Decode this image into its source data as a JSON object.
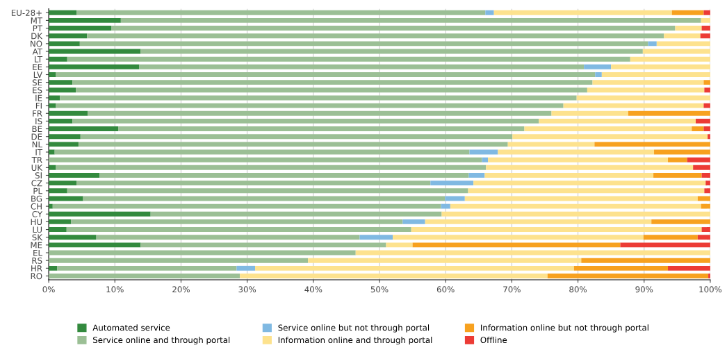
{
  "chart_data": {
    "type": "bar",
    "orientation": "horizontal",
    "stacked": true,
    "categories": [
      "EU-28+",
      "MT",
      "PT",
      "DK",
      "NO",
      "AT",
      "LT",
      "EE",
      "LV",
      "SE",
      "ES",
      "IE",
      "FI",
      "FR",
      "IS",
      "BE",
      "DE",
      "NL",
      "IT",
      "TR",
      "UK",
      "SI",
      "CZ",
      "PL",
      "BG",
      "CH",
      "CY",
      "HU",
      "LU",
      "SK",
      "ME",
      "EL",
      "RS",
      "HR",
      "RO"
    ],
    "series": [
      {
        "name": "Automated service",
        "color": "#338a3e",
        "values": [
          4.2,
          10.9,
          9.5,
          5.8,
          4.7,
          13.9,
          2.8,
          13.7,
          1.1,
          3.6,
          4.1,
          1.7,
          1.1,
          5.9,
          3.6,
          10.5,
          4.8,
          4.5,
          0.9,
          0,
          1.1,
          7.7,
          4.2,
          2.8,
          5.2,
          0.6,
          15.4,
          3.4,
          2.7,
          7.2,
          13.9,
          0,
          0,
          1.3,
          0
        ]
      },
      {
        "name": "Service online and through portal",
        "color": "#9bbf95",
        "values": [
          61.8,
          87.7,
          85.2,
          87.2,
          85.9,
          75.9,
          85.1,
          67.2,
          81.5,
          78.6,
          77.3,
          78.1,
          76.7,
          70.1,
          70.5,
          61.4,
          65.3,
          64.9,
          62.7,
          65.5,
          65.0,
          55.8,
          53.5,
          60.6,
          54.7,
          58.7,
          44.0,
          50.1,
          52.1,
          39.8,
          37.1,
          46.4,
          39.2,
          27.1,
          28.9
        ]
      },
      {
        "name": "Service online but not through portal",
        "color": "#80b9e2",
        "values": [
          1.3,
          0,
          0,
          0,
          1.3,
          0,
          0,
          4.1,
          1.0,
          0,
          0,
          0,
          0,
          0,
          0,
          0,
          0,
          0,
          4.3,
          0.9,
          0,
          2.4,
          6.5,
          0,
          3.0,
          1.4,
          0,
          3.4,
          0,
          5.0,
          0,
          0,
          0,
          2.8,
          0
        ]
      },
      {
        "name": "Information online and through portal",
        "color": "#fde28e",
        "values": [
          26.9,
          1.4,
          4.0,
          5.5,
          8.1,
          10.2,
          12.1,
          15.0,
          16.4,
          16.8,
          17.7,
          20.2,
          21.2,
          11.6,
          23.7,
          25.3,
          29.5,
          13.1,
          23.6,
          27.2,
          31.3,
          25.5,
          35.1,
          35.7,
          35.2,
          37.9,
          40.6,
          34.2,
          43.9,
          37.9,
          4.0,
          53.6,
          41.3,
          48.2,
          46.5
        ]
      },
      {
        "name": "Information online but not through portal",
        "color": "#f7a11f",
        "values": [
          4.8,
          0,
          0,
          0,
          0,
          0,
          0,
          0,
          0,
          1.0,
          0,
          0,
          0,
          12.4,
          0,
          1.8,
          0,
          17.5,
          8.5,
          2.9,
          0,
          7.3,
          0,
          0,
          1.9,
          1.4,
          0,
          8.9,
          0,
          8.2,
          31.4,
          0,
          19.5,
          14.2,
          24.3
        ]
      },
      {
        "name": "Offline",
        "color": "#ec3b35",
        "values": [
          1.0,
          0,
          1.3,
          1.5,
          0,
          0,
          0,
          0,
          0,
          0,
          0.9,
          0,
          1.0,
          0,
          2.2,
          1.0,
          0.4,
          0,
          0,
          3.5,
          2.6,
          1.3,
          0.7,
          0.9,
          0,
          0,
          0,
          0,
          1.3,
          1.9,
          13.6,
          0,
          0,
          6.4,
          0.3
        ]
      }
    ],
    "xlim": [
      0,
      100
    ],
    "xticks": [
      {
        "value": 0,
        "label": "0%"
      },
      {
        "value": 10,
        "label": "10%"
      },
      {
        "value": 20,
        "label": "20%"
      },
      {
        "value": 30,
        "label": "30%"
      },
      {
        "value": 40,
        "label": "40%"
      },
      {
        "value": 50,
        "label": "50%"
      },
      {
        "value": 60,
        "label": "60%"
      },
      {
        "value": 70,
        "label": "70%"
      },
      {
        "value": 80,
        "label": "80%"
      },
      {
        "value": 90,
        "label": "90%"
      },
      {
        "value": 100,
        "label": "100%"
      }
    ],
    "grid": "x",
    "legend": "bottom"
  }
}
